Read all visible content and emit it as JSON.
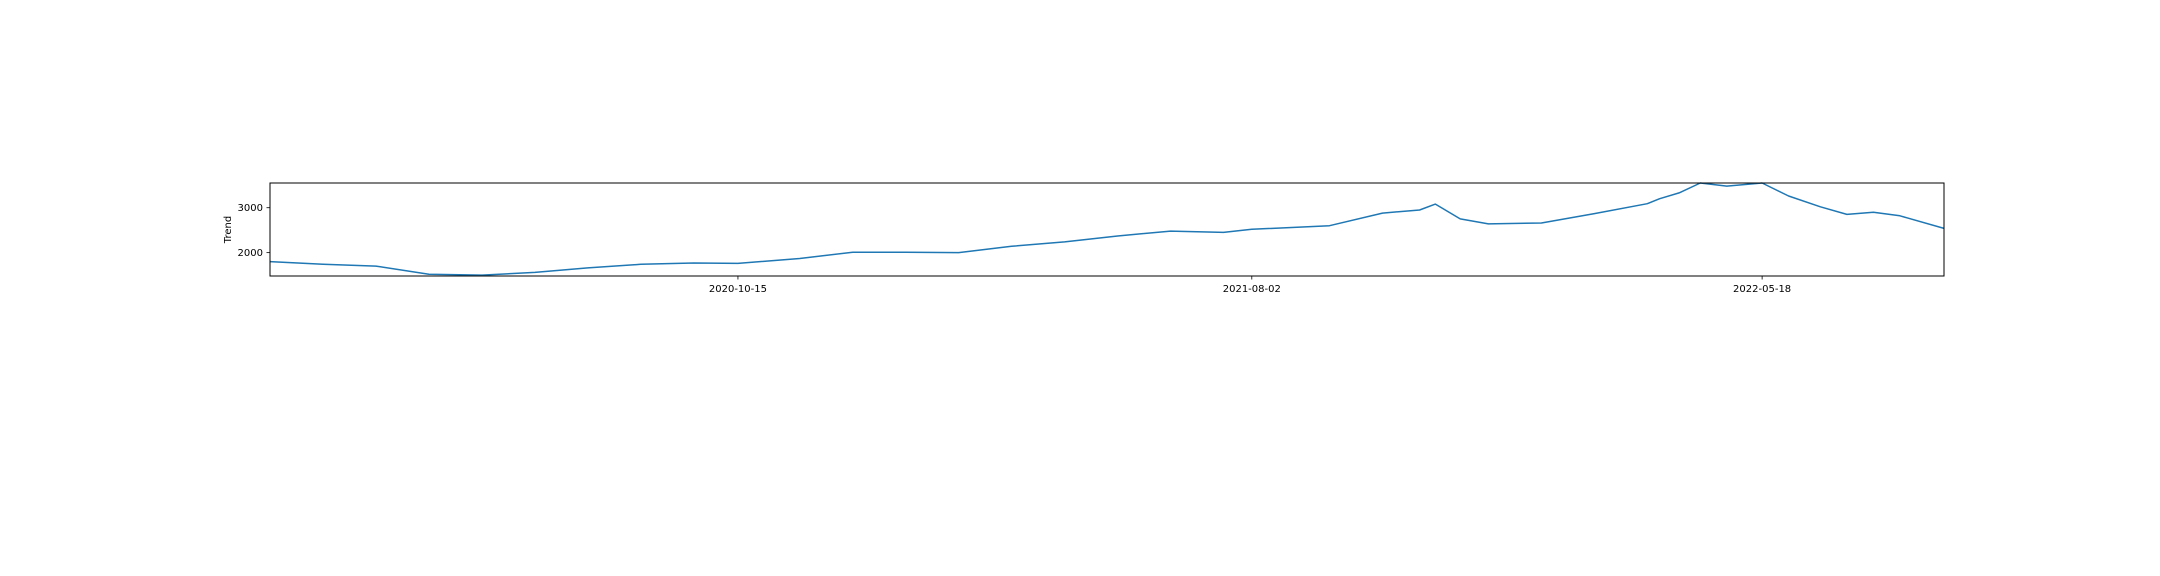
{
  "chart_data": {
    "type": "line",
    "title": "",
    "xlabel": "",
    "ylabel": "Trend",
    "x_tick_labels": [
      "2020-10-15",
      "2021-08-02",
      "2022-05-18"
    ],
    "y_ticks": [
      2000,
      3000
    ],
    "ylim": [
      1480,
      3550
    ],
    "xlim": [
      "2020-01-24",
      "2022-08-29"
    ],
    "grid": false,
    "line_color": "#1f77b4",
    "series": [
      {
        "x": [
          "2020-01-24",
          "2020-02-23",
          "2020-03-24",
          "2020-04-23",
          "2020-05-23",
          "2020-06-22",
          "2020-07-22",
          "2020-08-21",
          "2020-09-20",
          "2020-10-15",
          "2020-11-19",
          "2020-12-19",
          "2021-01-18",
          "2021-02-17",
          "2021-03-19",
          "2021-04-18",
          "2021-05-18",
          "2021-06-17",
          "2021-07-17",
          "2021-08-02",
          "2021-09-15",
          "2021-10-15",
          "2021-11-05",
          "2021-11-14",
          "2021-11-28",
          "2021-12-14",
          "2022-01-13",
          "2022-02-12",
          "2022-03-14",
          "2022-03-21",
          "2022-04-01",
          "2022-04-13",
          "2022-04-28",
          "2022-05-18",
          "2022-06-02",
          "2022-06-20",
          "2022-07-05",
          "2022-07-20",
          "2022-08-04",
          "2022-08-29"
        ],
        "values": [
          1800,
          1740,
          1700,
          1520,
          1500,
          1560,
          1660,
          1740,
          1770,
          1760,
          1870,
          2010,
          2010,
          2000,
          2140,
          2240,
          2370,
          2480,
          2450,
          2520,
          2600,
          2880,
          2950,
          3080,
          2750,
          2640,
          2660,
          2870,
          3090,
          3200,
          3330,
          3550,
          3480,
          3550,
          3260,
          3020,
          2850,
          2900,
          2820,
          2540
        ]
      }
    ]
  }
}
